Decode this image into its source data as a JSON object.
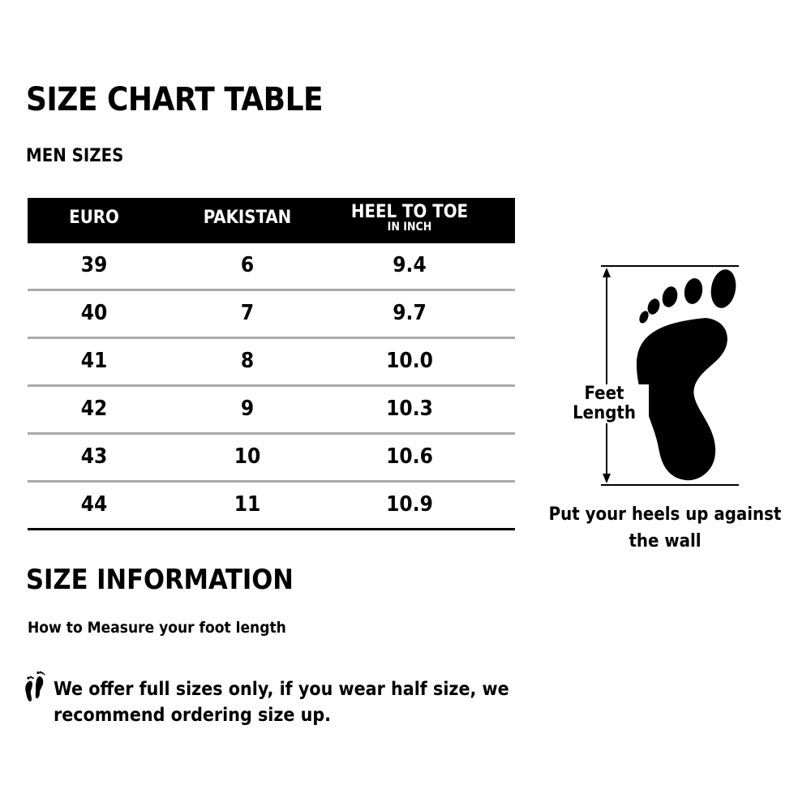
{
  "title": "SIZE CHART TABLE",
  "subtitle": "MEN SIZES",
  "table": {
    "headers": [
      "EURO",
      "PAKISTAN",
      "HEEL TO TOE"
    ],
    "header_sub": "IN INCH",
    "rows": [
      [
        "39",
        "6",
        "9.4"
      ],
      [
        "40",
        "7",
        "9.7"
      ],
      [
        "41",
        "8",
        "10.0"
      ],
      [
        "42",
        "9",
        "10.3"
      ],
      [
        "43",
        "10",
        "10.6"
      ],
      [
        "44",
        "11",
        "10.9"
      ]
    ]
  },
  "diagram": {
    "label_line1": "Feet",
    "label_line2": "Length",
    "caption": "Put your heels up against the wall",
    "icon": "footprint-icon"
  },
  "info": {
    "title": "SIZE INFORMATION",
    "measure": "How to Measure your foot length",
    "note": "We offer full sizes only, if you wear half size, we recommend ordering size up.",
    "note_icon": "footprints-icon"
  },
  "colors": {
    "header_bg": "#000000",
    "divider": "#aaaaaa"
  }
}
